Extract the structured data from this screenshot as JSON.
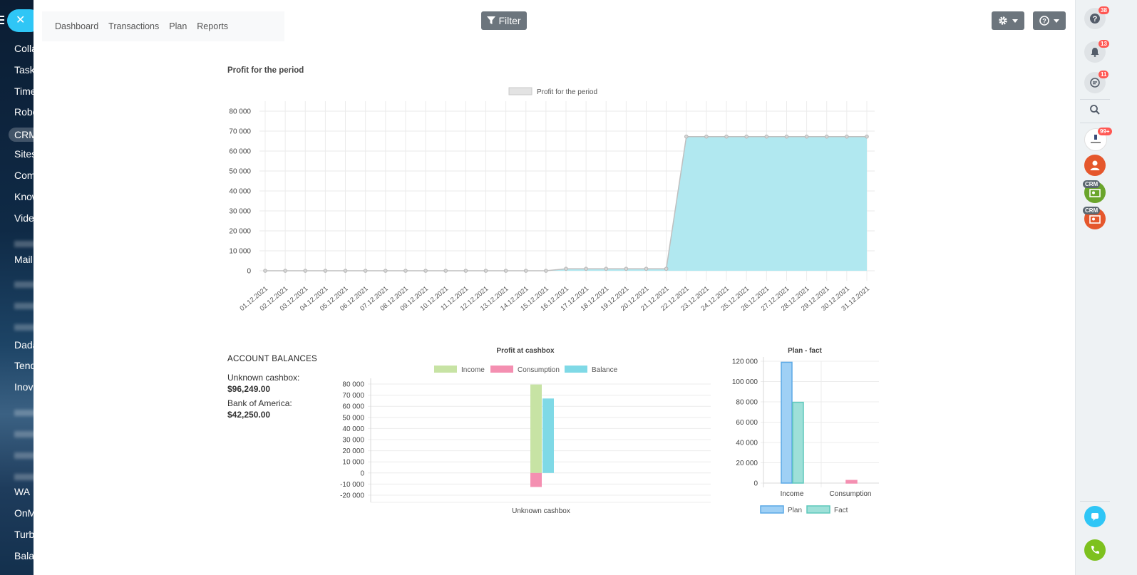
{
  "left_sidebar": {
    "items": [
      "Colla",
      "Task",
      "Time",
      "Robo",
      "CRM",
      "Sites",
      "Com",
      "Know",
      "Vide",
      "Mail",
      "Dada",
      "Tend",
      "Inov",
      "WA",
      "OnM",
      "Turb",
      "Bala"
    ]
  },
  "top_tabs": [
    "Dashboard",
    "Transactions",
    "Plan",
    "Reports"
  ],
  "filter_label": "Filter",
  "profit_section_title": "Profit for the period",
  "account_balances": {
    "title": "ACCOUNT BALANCES",
    "accounts": [
      {
        "name": "Unknown cashbox:",
        "value": "$96,249.00"
      },
      {
        "name": "Bank of America:",
        "value": "$42,250.00"
      }
    ]
  },
  "right_sidebar": {
    "badges": {
      "help": "38",
      "notifications": "13",
      "chats": "11",
      "avatar": "99+"
    },
    "crm_label": "CRM"
  },
  "colors": {
    "accent": "#2fc6f6",
    "area_fill": "#b1e8f0",
    "income": "#c7e3a4",
    "consumption": "#f48fb1",
    "balance": "#7fd9e6",
    "plan": "#9fd0f5",
    "fact": "#9ee0d8"
  },
  "chart_data": [
    {
      "type": "area",
      "legend": [
        "Profit for the period"
      ],
      "x": [
        "01.12.2021",
        "02.12.2021",
        "03.12.2021",
        "04.12.2021",
        "05.12.2021",
        "06.12.2021",
        "07.12.2021",
        "08.12.2021",
        "09.12.2021",
        "10.12.2021",
        "11.12.2021",
        "12.12.2021",
        "13.12.2021",
        "14.12.2021",
        "15.12.2021",
        "16.12.2021",
        "17.12.2021",
        "18.12.2021",
        "19.12.2021",
        "20.12.2021",
        "21.12.2021",
        "22.12.2021",
        "23.12.2021",
        "24.12.2021",
        "25.12.2021",
        "26.12.2021",
        "27.12.2021",
        "28.12.2021",
        "29.12.2021",
        "30.12.2021",
        "31.12.2021"
      ],
      "series": [
        {
          "name": "Profit for the period",
          "values": [
            0,
            0,
            0,
            0,
            0,
            0,
            0,
            0,
            0,
            0,
            0,
            0,
            0,
            0,
            0,
            1000,
            1000,
            1000,
            1000,
            1000,
            1000,
            67250,
            67250,
            67250,
            67250,
            67250,
            67250,
            67250,
            67250,
            67250,
            67250
          ]
        }
      ],
      "yticks": [
        "0",
        "10 000",
        "20 000",
        "30 000",
        "40 000",
        "50 000",
        "60 000",
        "70 000",
        "80 000"
      ],
      "ylim": [
        0,
        80000
      ],
      "grid": true,
      "legend_position": "top"
    },
    {
      "type": "bar",
      "title": "Profit at cashbox",
      "categories": [
        "Unknown cashbox"
      ],
      "series": [
        {
          "name": "Income",
          "values": [
            79600
          ]
        },
        {
          "name": "Consumption",
          "values": [
            -12600
          ]
        },
        {
          "name": "Balance",
          "values": [
            67000
          ]
        }
      ],
      "yticks": [
        "-20 000",
        "-10 000",
        "0",
        "10 000",
        "20 000",
        "30 000",
        "40 000",
        "50 000",
        "60 000",
        "70 000",
        "80 000"
      ],
      "ylim": [
        -20000,
        80000
      ],
      "grid": true,
      "legend_position": "top"
    },
    {
      "type": "bar",
      "title": "Plan - fact",
      "categories": [
        "Income",
        "Consumption"
      ],
      "series": [
        {
          "name": "Plan",
          "values": [
            119000,
            0
          ]
        },
        {
          "name": "Fact",
          "values": [
            79600,
            2600
          ]
        }
      ],
      "yticks": [
        "0",
        "20 000",
        "40 000",
        "60 000",
        "80 000",
        "100 000",
        "120 000"
      ],
      "ylim": [
        0,
        120000
      ],
      "grid": true,
      "legend_position": "bottom"
    }
  ]
}
